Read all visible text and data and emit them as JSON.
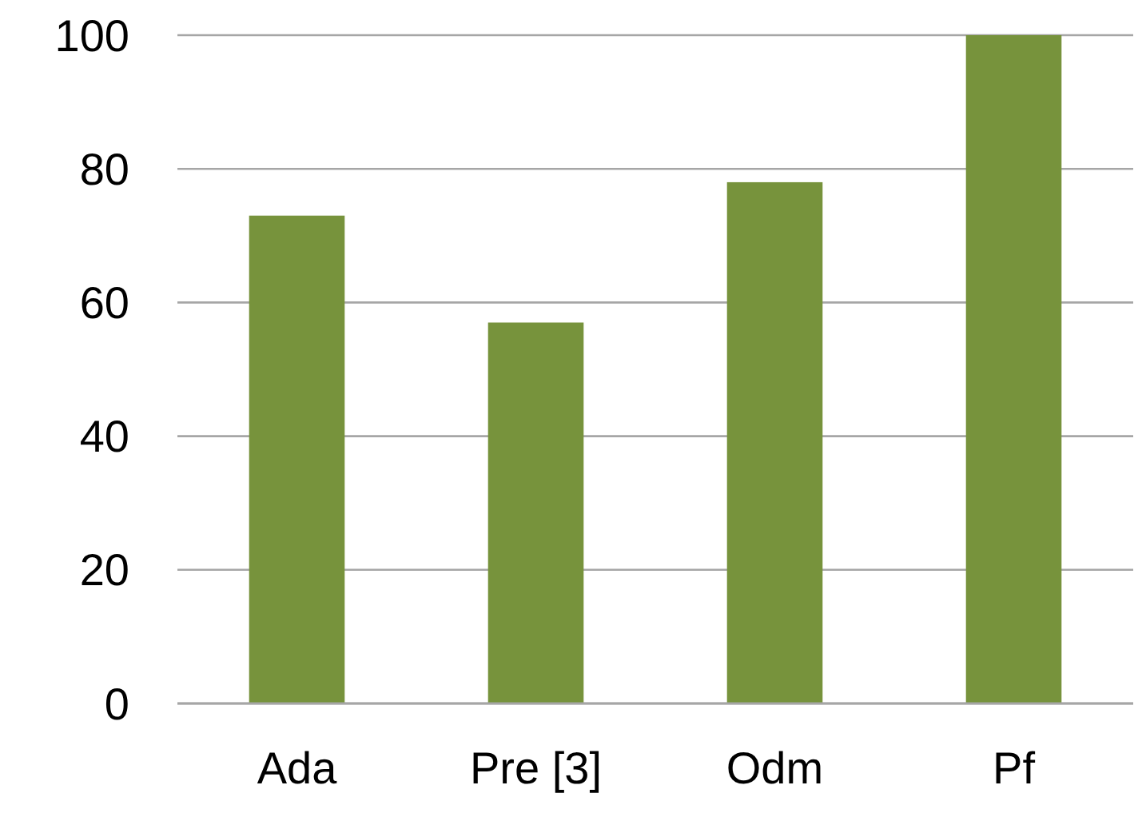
{
  "chart_data": {
    "type": "bar",
    "categories": [
      "Ada",
      "Pre [3]",
      "Odm",
      "Pf"
    ],
    "values": [
      73,
      57,
      78,
      100
    ],
    "color": "#77933c",
    "ylim": [
      0,
      100
    ],
    "yticks": [
      0,
      20,
      40,
      60,
      80,
      100
    ],
    "grid": "y"
  }
}
